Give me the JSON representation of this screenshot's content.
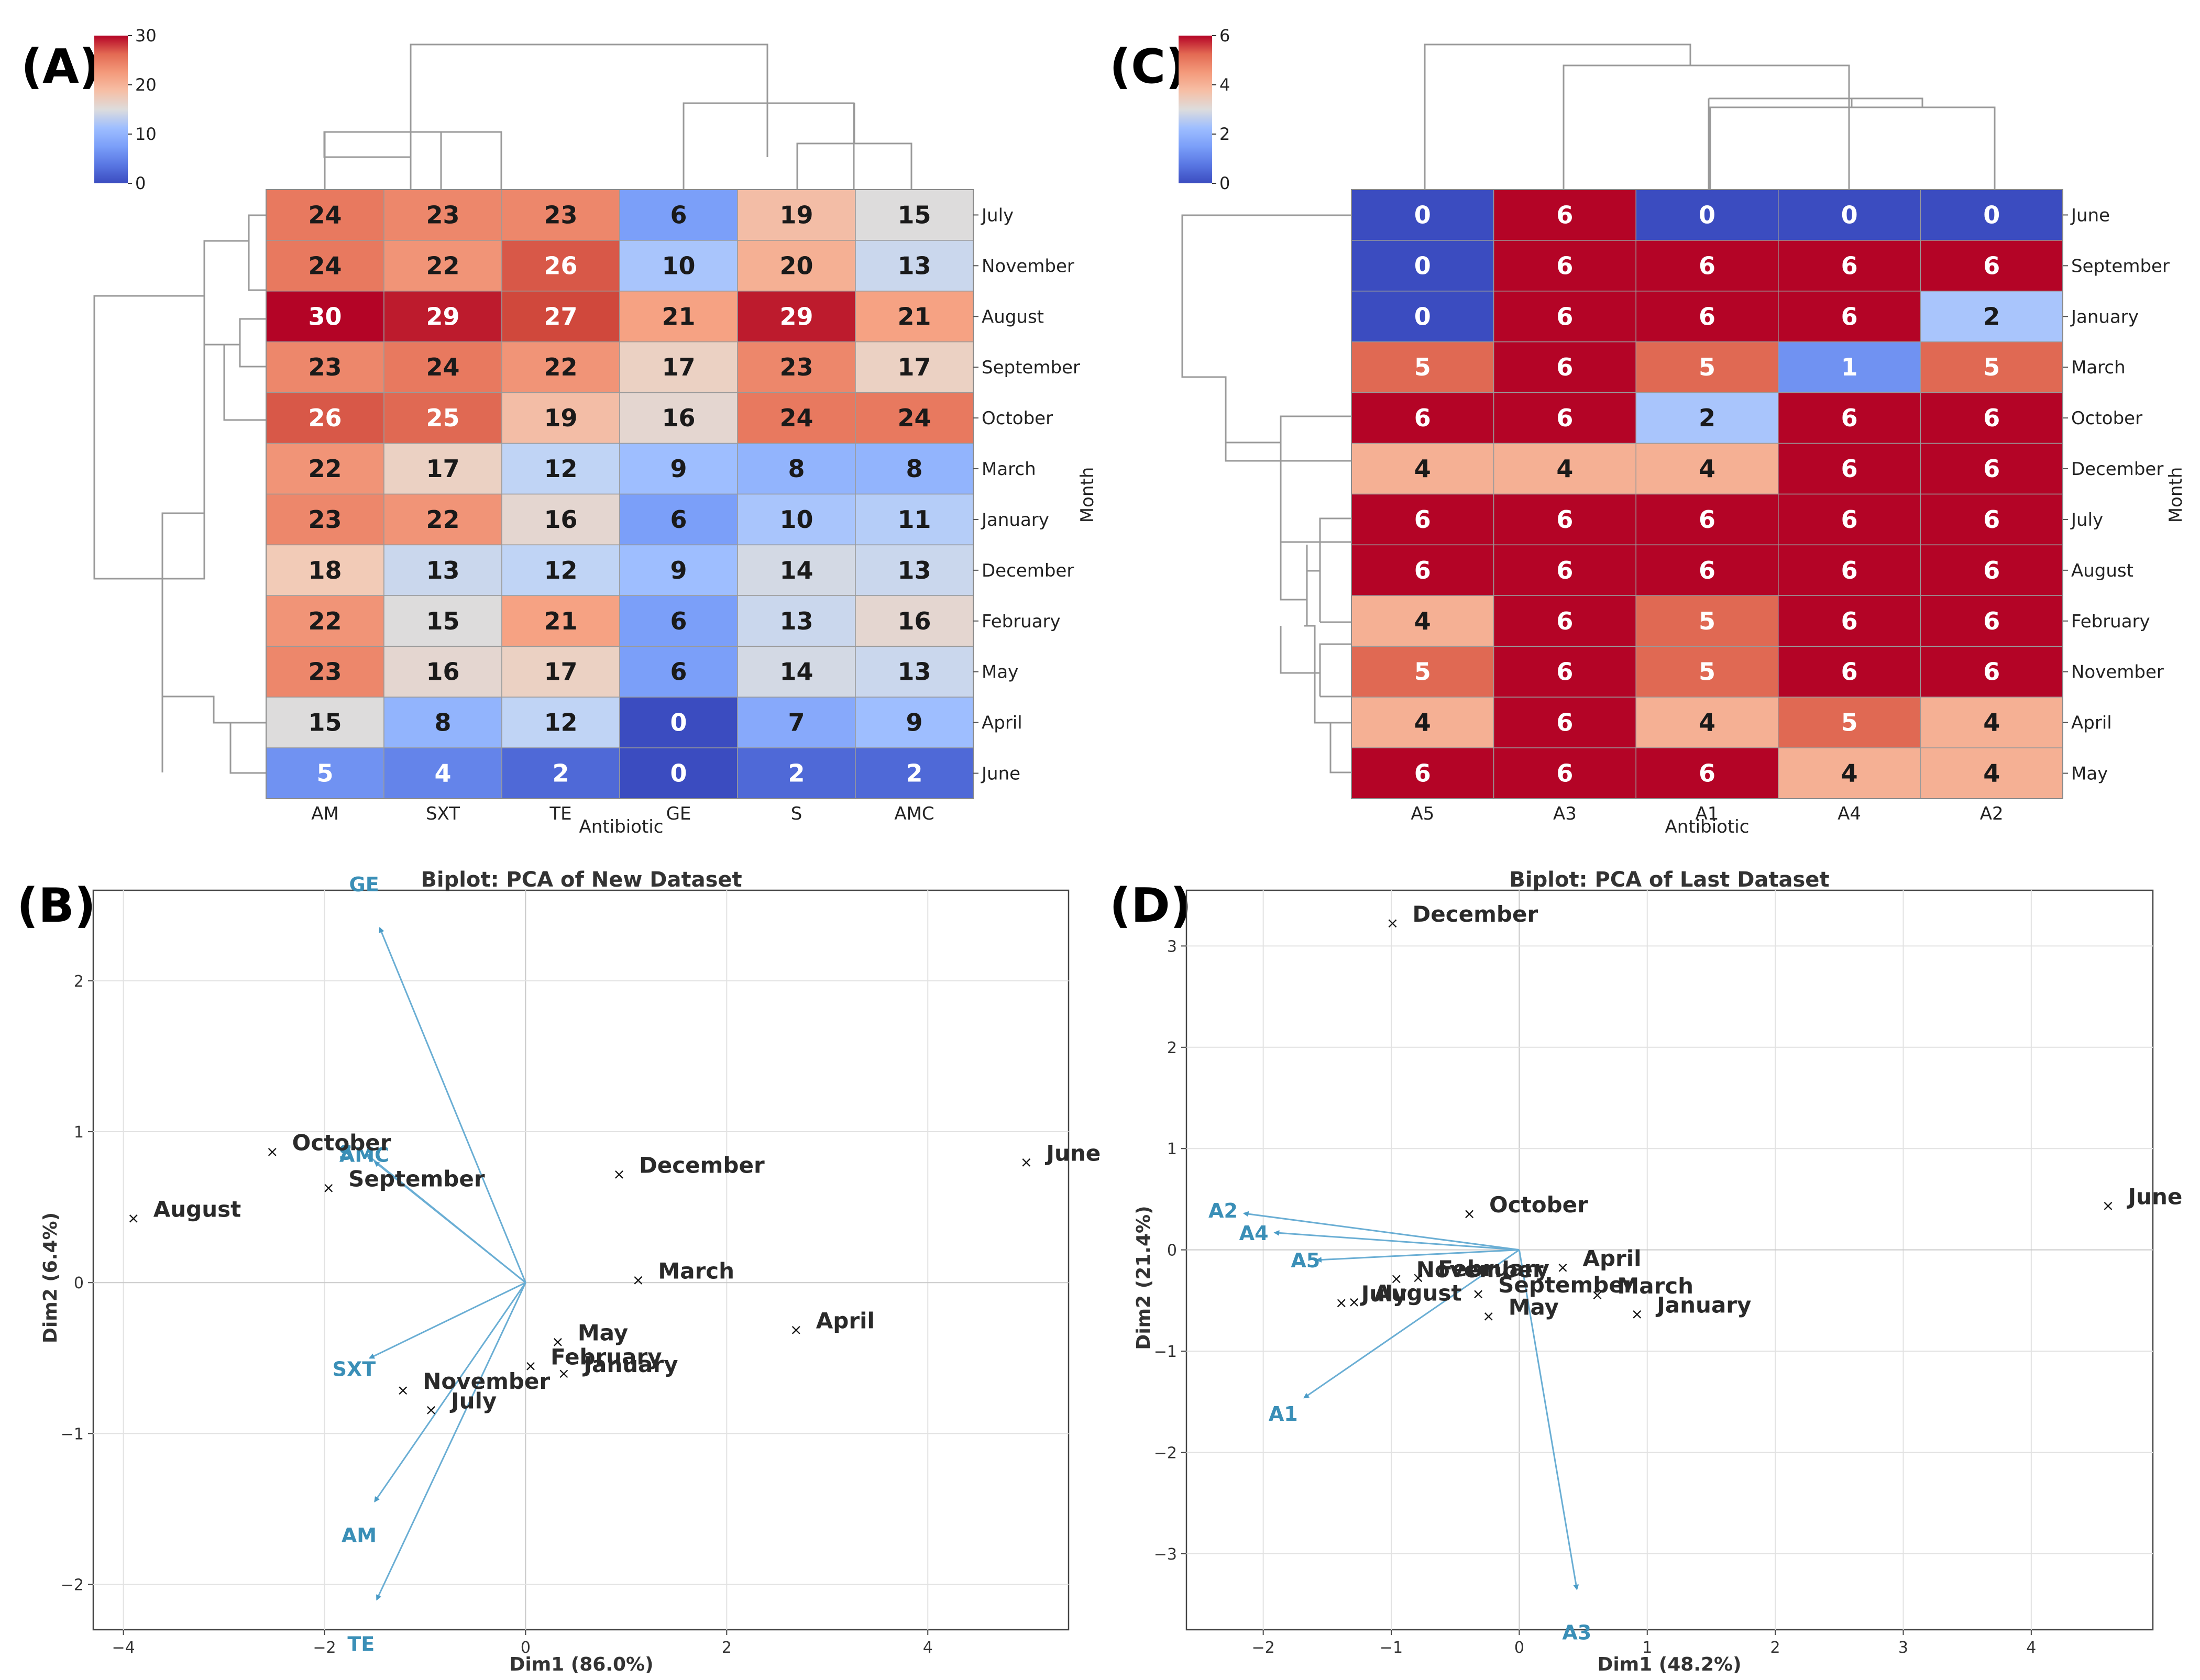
{
  "chart_data": [
    {
      "type": "heatmap",
      "panel": "(A)",
      "xlabel": "Antibiotic",
      "ylabel": "Month",
      "colorbar": {
        "min": 0,
        "max": 30,
        "ticks": [
          0,
          10,
          20,
          30
        ]
      },
      "columns": [
        "AM",
        "SXT",
        "TE",
        "GE",
        "S",
        "AMC"
      ],
      "rows": [
        "July",
        "November",
        "August",
        "September",
        "October",
        "March",
        "January",
        "December",
        "February",
        "May",
        "April",
        "June"
      ],
      "values": [
        [
          24,
          23,
          23,
          6,
          19,
          15
        ],
        [
          24,
          22,
          26,
          10,
          20,
          13
        ],
        [
          30,
          29,
          27,
          21,
          29,
          21
        ],
        [
          23,
          24,
          22,
          17,
          23,
          17
        ],
        [
          26,
          25,
          19,
          16,
          24,
          24
        ],
        [
          22,
          17,
          12,
          9,
          8,
          8
        ],
        [
          23,
          22,
          16,
          6,
          10,
          11
        ],
        [
          18,
          13,
          12,
          9,
          14,
          13
        ],
        [
          22,
          15,
          21,
          6,
          13,
          16
        ],
        [
          23,
          16,
          17,
          6,
          14,
          13
        ],
        [
          15,
          8,
          12,
          0,
          7,
          9
        ],
        [
          5,
          4,
          2,
          0,
          2,
          2
        ]
      ]
    },
    {
      "type": "heatmap",
      "panel": "(C)",
      "xlabel": "Antibiotic",
      "ylabel": "Month",
      "colorbar": {
        "min": 0,
        "max": 6,
        "ticks": [
          0,
          2,
          4,
          6
        ]
      },
      "columns": [
        "A5",
        "A3",
        "A1",
        "A4",
        "A2"
      ],
      "rows": [
        "June",
        "September",
        "January",
        "March",
        "October",
        "December",
        "July",
        "August",
        "February",
        "November",
        "April",
        "May"
      ],
      "values": [
        [
          0,
          6,
          0,
          0,
          0
        ],
        [
          0,
          6,
          6,
          6,
          6
        ],
        [
          0,
          6,
          6,
          6,
          2
        ],
        [
          5,
          6,
          5,
          1,
          5
        ],
        [
          6,
          6,
          2,
          6,
          6
        ],
        [
          4,
          4,
          4,
          6,
          6
        ],
        [
          6,
          6,
          6,
          6,
          6
        ],
        [
          6,
          6,
          6,
          6,
          6
        ],
        [
          4,
          6,
          5,
          6,
          6
        ],
        [
          5,
          6,
          5,
          6,
          6
        ],
        [
          4,
          6,
          4,
          5,
          4
        ],
        [
          6,
          6,
          6,
          4,
          4
        ]
      ]
    },
    {
      "type": "scatter",
      "panel": "(B)",
      "title": "Biplot: PCA of New Dataset",
      "xlabel": "Dim1 (86.0%)",
      "ylabel": "Dim2 (6.4%)",
      "xlim": [
        -4.3,
        5.4
      ],
      "ylim": [
        -2.3,
        2.6
      ],
      "xticks": [
        -4,
        -2,
        0,
        2,
        4
      ],
      "yticks": [
        -2,
        -1,
        0,
        1,
        2
      ],
      "points": [
        {
          "label": "October",
          "x": -2.52,
          "y": 0.87
        },
        {
          "label": "September",
          "x": -1.96,
          "y": 0.63
        },
        {
          "label": "August",
          "x": -3.9,
          "y": 0.43
        },
        {
          "label": "December",
          "x": 0.93,
          "y": 0.72
        },
        {
          "label": "June",
          "x": 4.98,
          "y": 0.8
        },
        {
          "label": "March",
          "x": 1.12,
          "y": 0.02
        },
        {
          "label": "April",
          "x": 2.69,
          "y": -0.31
        },
        {
          "label": "May",
          "x": 0.32,
          "y": -0.39
        },
        {
          "label": "February",
          "x": 0.05,
          "y": -0.55
        },
        {
          "label": "January",
          "x": 0.38,
          "y": -0.6
        },
        {
          "label": "November",
          "x": -1.22,
          "y": -0.71
        },
        {
          "label": "July",
          "x": -0.94,
          "y": -0.84
        }
      ],
      "loadings": [
        {
          "label": "GE",
          "x": -1.45,
          "y": 2.35
        },
        {
          "label": "S",
          "x": -1.58,
          "y": 0.85
        },
        {
          "label": "AMC",
          "x": -1.5,
          "y": 0.8
        },
        {
          "label": "SXT",
          "x": -1.55,
          "y": -0.5
        },
        {
          "label": "AM",
          "x": -1.5,
          "y": -1.45
        },
        {
          "label": "TE",
          "x": -1.48,
          "y": -2.1
        }
      ]
    },
    {
      "type": "scatter",
      "panel": "(D)",
      "title": "Biplot: PCA of Last Dataset",
      "xlabel": "Dim1 (48.2%)",
      "ylabel": "Dim2 (21.4%)",
      "xlim": [
        -2.6,
        4.95
      ],
      "ylim": [
        -3.75,
        3.55
      ],
      "xticks": [
        -2,
        -1,
        0,
        1,
        2,
        3,
        4
      ],
      "yticks": [
        -3,
        -2,
        -1,
        0,
        1,
        2,
        3
      ],
      "points": [
        {
          "label": "December",
          "x": -0.99,
          "y": 3.23
        },
        {
          "label": "October",
          "x": -0.39,
          "y": 0.36
        },
        {
          "label": "June",
          "x": 4.6,
          "y": 0.44
        },
        {
          "label": "April",
          "x": 0.34,
          "y": -0.17
        },
        {
          "label": "November",
          "x": -0.96,
          "y": -0.28
        },
        {
          "label": "February",
          "x": -0.79,
          "y": -0.27
        },
        {
          "label": "July",
          "x": -1.39,
          "y": -0.52
        },
        {
          "label": "August",
          "x": -1.29,
          "y": -0.51
        },
        {
          "label": "September",
          "x": -0.32,
          "y": -0.43
        },
        {
          "label": "March",
          "x": 0.61,
          "y": -0.44
        },
        {
          "label": "May",
          "x": -0.24,
          "y": -0.65
        },
        {
          "label": "January",
          "x": 0.92,
          "y": -0.63
        }
      ],
      "loadings": [
        {
          "label": "A2",
          "x": -2.15,
          "y": 0.36
        },
        {
          "label": "A4",
          "x": -1.91,
          "y": 0.17
        },
        {
          "label": "A5",
          "x": -1.58,
          "y": -0.1
        },
        {
          "label": "A1",
          "x": -1.68,
          "y": -1.46
        },
        {
          "label": "A3",
          "x": 0.45,
          "y": -3.35
        }
      ]
    }
  ],
  "panel_labels": {
    "a": "(A)",
    "b": "(B)",
    "c": "(C)",
    "d": "(D)"
  }
}
